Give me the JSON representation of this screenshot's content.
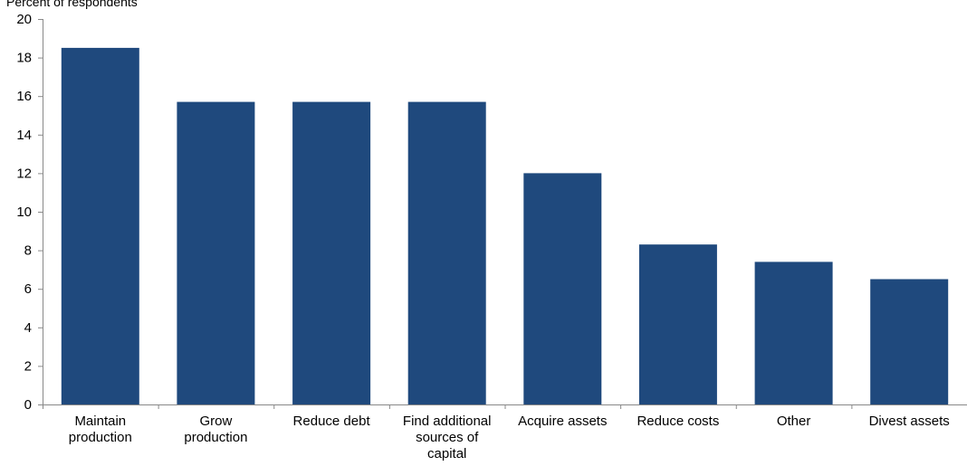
{
  "chart_data": {
    "type": "bar",
    "title": "",
    "xlabel": "",
    "ylabel": "Percent of respondents",
    "ylim": [
      0,
      20
    ],
    "yticks": [
      0,
      2,
      4,
      6,
      8,
      10,
      12,
      14,
      16,
      18,
      20
    ],
    "grid": false,
    "legend": "none",
    "bar_color": "#1f497d",
    "categories": [
      [
        "Maintain",
        "production"
      ],
      [
        "Grow",
        "production"
      ],
      [
        "Reduce debt"
      ],
      [
        "Find additional",
        "sources of",
        "capital"
      ],
      [
        "Acquire assets"
      ],
      [
        "Reduce costs"
      ],
      [
        "Other"
      ],
      [
        "Divest assets"
      ]
    ],
    "values": [
      18.5,
      15.7,
      15.7,
      15.7,
      12.0,
      8.3,
      7.4,
      6.5
    ]
  }
}
